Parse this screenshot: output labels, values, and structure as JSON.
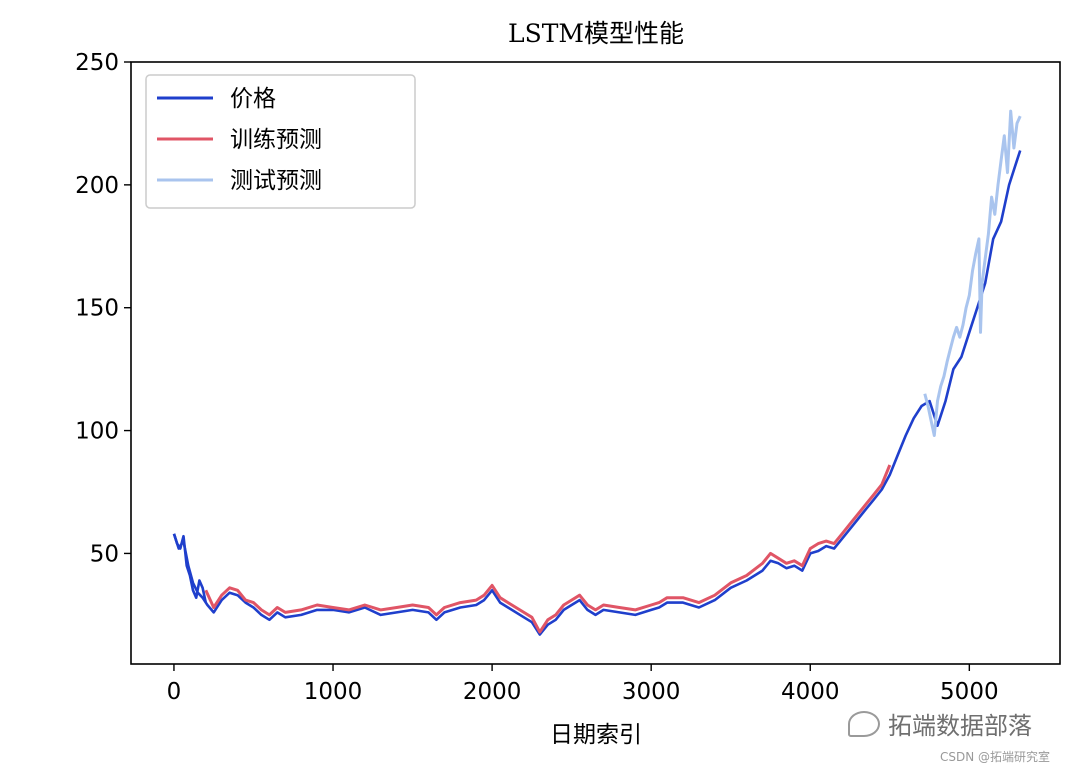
{
  "chart_data": {
    "type": "line",
    "title": "LSTM模型性能",
    "xlabel": "日期索引",
    "ylabel": "",
    "xlim": [
      -270,
      5570
    ],
    "ylim": [
      5,
      250
    ],
    "xticks": [
      0,
      1000,
      2000,
      3000,
      4000,
      5000
    ],
    "yticks": [
      50,
      100,
      150,
      200,
      250
    ],
    "grid": false,
    "legend_position": "upper-left",
    "series": [
      {
        "name": "价格",
        "color": "#1f3fcc",
        "x": [
          0,
          30,
          60,
          90,
          120,
          150,
          180,
          210,
          250,
          300,
          350,
          400,
          450,
          500,
          550,
          600,
          650,
          700,
          800,
          900,
          1000,
          1100,
          1200,
          1300,
          1400,
          1500,
          1600,
          1650,
          1700,
          1800,
          1900,
          1950,
          2000,
          2050,
          2100,
          2200,
          2250,
          2300,
          2350,
          2400,
          2450,
          2500,
          2550,
          2600,
          2650,
          2700,
          2800,
          2900,
          3000,
          3050,
          3100,
          3200,
          3300,
          3400,
          3500,
          3600,
          3700,
          3750,
          3800,
          3850,
          3900,
          3950,
          4000,
          4050,
          4100,
          4150,
          4200,
          4250,
          4300,
          4350,
          4400,
          4450,
          4500,
          4550,
          4600,
          4650,
          4700,
          4750,
          4800,
          4850,
          4900,
          4950,
          5000,
          5050,
          5100,
          5150,
          5200,
          5250,
          5300,
          5320
        ],
        "y": [
          58,
          52,
          55,
          45,
          38,
          34,
          32,
          29,
          26,
          31,
          34,
          33,
          30,
          28,
          25,
          23,
          26,
          24,
          25,
          27,
          27,
          26,
          28,
          25,
          26,
          27,
          26,
          23,
          26,
          28,
          29,
          31,
          35,
          30,
          28,
          24,
          22,
          17,
          21,
          23,
          27,
          29,
          31,
          27,
          25,
          27,
          26,
          25,
          27,
          28,
          30,
          30,
          28,
          31,
          36,
          39,
          43,
          47,
          46,
          44,
          45,
          43,
          50,
          51,
          53,
          52,
          56,
          60,
          64,
          68,
          72,
          76,
          82,
          90,
          98,
          105,
          110,
          112,
          102,
          112,
          125,
          130,
          140,
          150,
          160,
          178,
          185,
          200,
          210,
          214
        ],
        "pre_train": {
          "x": [
            0,
            20,
            40,
            60,
            80,
            100,
            120,
            140,
            160,
            180,
            200
          ],
          "y": [
            58,
            54,
            52,
            57,
            45,
            41,
            35,
            32,
            39,
            36,
            30
          ]
        }
      },
      {
        "name": "训练预测",
        "color": "#e05566",
        "x": [
          200,
          250,
          300,
          350,
          400,
          450,
          500,
          550,
          600,
          650,
          700,
          800,
          900,
          1000,
          1100,
          1200,
          1300,
          1400,
          1500,
          1600,
          1650,
          1700,
          1800,
          1900,
          1950,
          2000,
          2050,
          2100,
          2200,
          2250,
          2300,
          2350,
          2400,
          2450,
          2500,
          2550,
          2600,
          2650,
          2700,
          2800,
          2900,
          3000,
          3050,
          3100,
          3200,
          3300,
          3400,
          3500,
          3600,
          3700,
          3750,
          3800,
          3850,
          3900,
          3950,
          4000,
          4050,
          4100,
          4150,
          4200,
          4250,
          4300,
          4350,
          4400,
          4450,
          4500
        ],
        "y": [
          35,
          28,
          33,
          36,
          35,
          31,
          30,
          27,
          25,
          28,
          26,
          27,
          29,
          28,
          27,
          29,
          27,
          28,
          29,
          28,
          25,
          28,
          30,
          31,
          33,
          37,
          32,
          30,
          26,
          24,
          18,
          23,
          25,
          29,
          31,
          33,
          29,
          27,
          29,
          28,
          27,
          29,
          30,
          32,
          32,
          30,
          33,
          38,
          41,
          46,
          50,
          48,
          46,
          47,
          45,
          52,
          54,
          55,
          54,
          58,
          62,
          66,
          70,
          74,
          78,
          86
        ]
      },
      {
        "name": "测试预测",
        "color": "#a9c4ee",
        "x": [
          4720,
          4740,
          4760,
          4780,
          4800,
          4820,
          4840,
          4860,
          4880,
          4900,
          4920,
          4940,
          4960,
          4980,
          5000,
          5020,
          5040,
          5060,
          5070,
          5080,
          5090,
          5100,
          5120,
          5140,
          5160,
          5180,
          5200,
          5220,
          5240,
          5260,
          5280,
          5300,
          5320
        ],
        "y": [
          115,
          110,
          104,
          98,
          112,
          118,
          122,
          128,
          133,
          138,
          142,
          138,
          143,
          150,
          155,
          165,
          172,
          178,
          140,
          160,
          165,
          170,
          180,
          195,
          188,
          200,
          210,
          220,
          205,
          230,
          215,
          225,
          228
        ]
      }
    ]
  },
  "watermark": {
    "main": "拓端数据部落",
    "sub": "CSDN @拓端研究室"
  }
}
